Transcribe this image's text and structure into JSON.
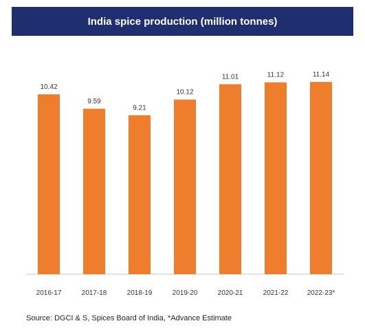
{
  "chart_data": {
    "type": "bar",
    "title": "India spice production (million tonnes)",
    "categories": [
      "2016-17",
      "2017-18",
      "2018-19",
      "2019-20",
      "2020-21",
      "2021-22",
      "2022-23*"
    ],
    "values": [
      10.42,
      9.59,
      9.21,
      10.12,
      11.01,
      11.12,
      11.14
    ],
    "value_labels": [
      "10.42",
      "9.59",
      "9.21",
      "10.12",
      "11.01",
      "11.12",
      "11.14"
    ],
    "ylim": [
      0,
      11.14
    ],
    "grid": false,
    "legend": "none"
  },
  "source_note": "Source: DGCI & S, Spices Board of India, *Advance Estimate",
  "colors": {
    "title_bg": "#1f2e6e",
    "bar": "#ee7d2e",
    "axis": "#c8c8c8"
  }
}
